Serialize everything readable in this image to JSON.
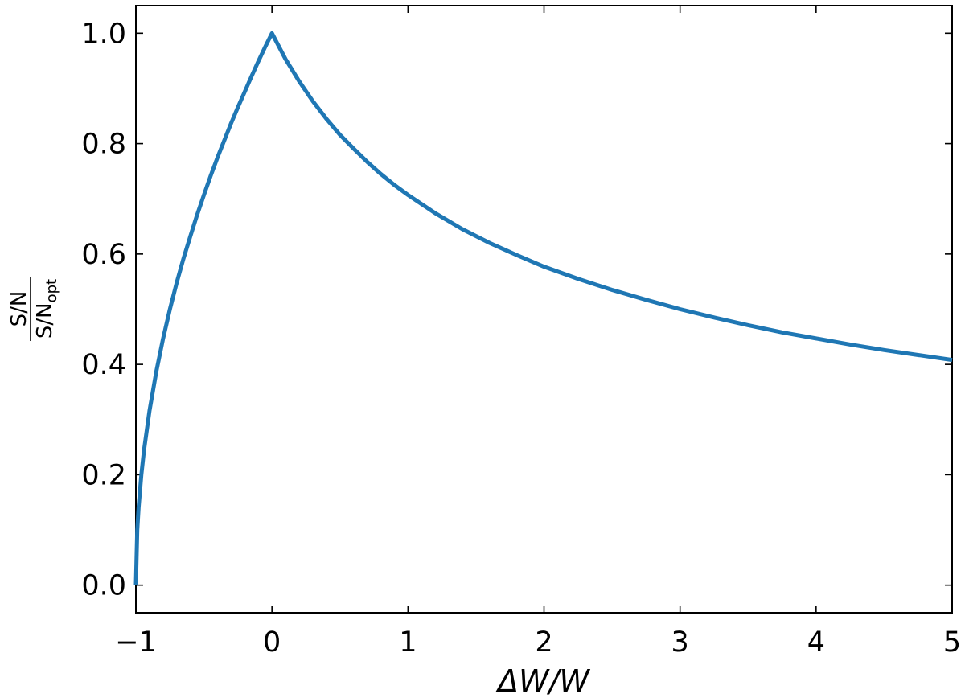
{
  "chart_data": {
    "type": "line",
    "title": "",
    "xlabel": "ΔW/W",
    "ylabel": {
      "numerator": "S/N",
      "denominator_main": "S/N",
      "denominator_sub": "opt"
    },
    "xlim": [
      -1,
      5
    ],
    "ylim": [
      -0.05,
      1.05
    ],
    "x_ticks": [
      {
        "value": -1,
        "label": "−1"
      },
      {
        "value": 0,
        "label": "0"
      },
      {
        "value": 1,
        "label": "1"
      },
      {
        "value": 2,
        "label": "2"
      },
      {
        "value": 3,
        "label": "3"
      },
      {
        "value": 4,
        "label": "4"
      },
      {
        "value": 5,
        "label": "5"
      }
    ],
    "y_ticks": [
      {
        "value": 0.0,
        "label": "0.0"
      },
      {
        "value": 0.2,
        "label": "0.2"
      },
      {
        "value": 0.4,
        "label": "0.4"
      },
      {
        "value": 0.6,
        "label": "0.6"
      },
      {
        "value": 0.8,
        "label": "0.8"
      },
      {
        "value": 1.0,
        "label": "1.0"
      }
    ],
    "grid": false,
    "legend": "none",
    "series": [
      {
        "color": "#1f77b4",
        "x": [
          -1.0,
          -0.99,
          -0.98,
          -0.96,
          -0.94,
          -0.9,
          -0.85,
          -0.8,
          -0.75,
          -0.7,
          -0.65,
          -0.6,
          -0.55,
          -0.5,
          -0.45,
          -0.4,
          -0.35,
          -0.3,
          -0.25,
          -0.2,
          -0.15,
          -0.1,
          -0.05,
          0.0,
          0.1,
          0.2,
          0.3,
          0.4,
          0.5,
          0.6,
          0.7,
          0.8,
          0.9,
          1.0,
          1.2,
          1.4,
          1.6,
          1.8,
          2.0,
          2.25,
          2.5,
          2.75,
          3.0,
          3.25,
          3.5,
          3.75,
          4.0,
          4.25,
          4.5,
          4.75,
          5.0
        ],
        "y": [
          0.0,
          0.1,
          0.141,
          0.2,
          0.245,
          0.316,
          0.387,
          0.447,
          0.5,
          0.548,
          0.592,
          0.632,
          0.671,
          0.707,
          0.742,
          0.775,
          0.806,
          0.837,
          0.866,
          0.894,
          0.922,
          0.949,
          0.975,
          1.0,
          0.953,
          0.913,
          0.877,
          0.845,
          0.816,
          0.791,
          0.767,
          0.745,
          0.725,
          0.707,
          0.674,
          0.645,
          0.62,
          0.598,
          0.577,
          0.555,
          0.535,
          0.517,
          0.5,
          0.485,
          0.471,
          0.458,
          0.447,
          0.436,
          0.426,
          0.417,
          0.408
        ]
      }
    ]
  }
}
